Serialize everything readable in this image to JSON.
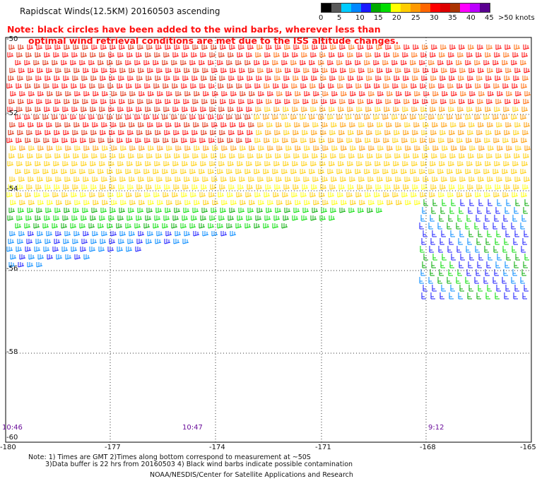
{
  "title": "Rapidscat Winds(12.5KM) 20160503 ascending",
  "note": {
    "line1": "Note: black circles have been added to the wind barbs, wherever less than",
    "line2": "optimal wind retrieval conditions are met due to the ISS altitude changes."
  },
  "legend": {
    "colors": [
      "#000000",
      "#5a5a5a",
      "#00ccff",
      "#0088ff",
      "#1a1aff",
      "#00aa00",
      "#00dd00",
      "#ffff00",
      "#ffcc00",
      "#ff9900",
      "#ff6600",
      "#ff0000",
      "#dd0000",
      "#aa3300",
      "#ff00ff",
      "#bb00ff",
      "#5a0090"
    ],
    "labels": [
      "0",
      "5",
      "10",
      "15",
      "20",
      "25",
      "30",
      "35",
      "40",
      "45",
      ">50 knots"
    ]
  },
  "axes": {
    "lon_ticks": [
      "-180",
      "-177",
      "-174",
      "-171",
      "-168",
      "-165"
    ],
    "lat_ticks": [
      "-50",
      "-52",
      "-54",
      "-56",
      "-58",
      "-60"
    ]
  },
  "times": [
    "10:46",
    "10:47",
    "9:12"
  ],
  "footer": {
    "line1": "Note: 1) Times are GMT 2)Times along bottom correspond to measurement at ~50S",
    "line2": "3)Data buffer is 22 hrs from 20160503 4) Black wind barbs indicate possible contamination",
    "line3": "NOAA/NESDIS/Center for Satellite Applications and Research"
  }
}
